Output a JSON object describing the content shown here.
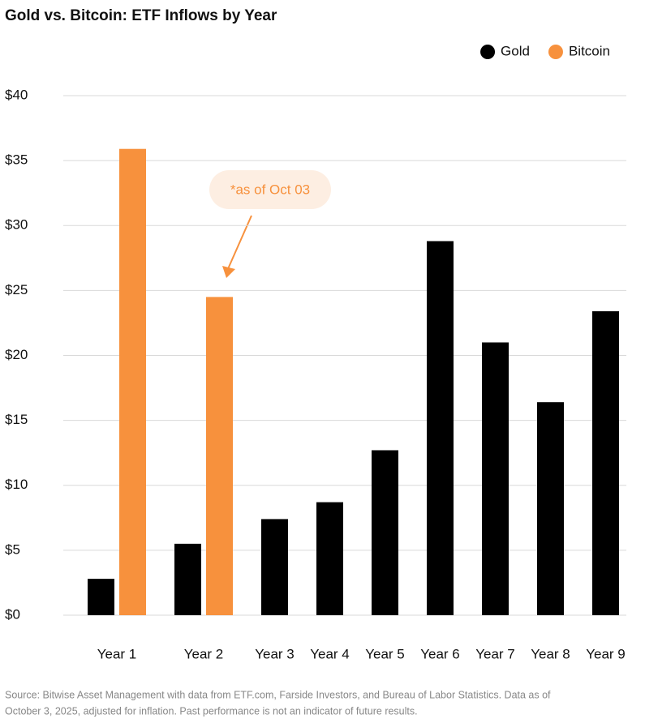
{
  "chart_data": {
    "type": "bar",
    "title": "Gold vs. Bitcoin: ETF Inflows by Year",
    "categories": [
      "Year 1",
      "Year 2",
      "Year 3",
      "Year 4",
      "Year 5",
      "Year 6",
      "Year 7",
      "Year 8",
      "Year 9"
    ],
    "series": [
      {
        "name": "Gold",
        "color": "#000000",
        "values": [
          2.8,
          5.5,
          7.4,
          8.7,
          12.7,
          28.8,
          21.0,
          16.4,
          23.4
        ]
      },
      {
        "name": "Bitcoin",
        "color": "#f7913d",
        "values": [
          35.9,
          24.5,
          null,
          null,
          null,
          null,
          null,
          null,
          null
        ]
      }
    ],
    "ylim": [
      0,
      40
    ],
    "yticks": [
      {
        "value": 0,
        "label": "$0"
      },
      {
        "value": 5,
        "label": "$5"
      },
      {
        "value": 10,
        "label": "$10"
      },
      {
        "value": 15,
        "label": "$15"
      },
      {
        "value": 20,
        "label": "$20"
      },
      {
        "value": 25,
        "label": "$25"
      },
      {
        "value": 30,
        "label": "$30"
      },
      {
        "value": 35,
        "label": "$35"
      },
      {
        "value": 40,
        "label": "$40"
      }
    ],
    "grid": true,
    "legend": "top-right",
    "annotation": "*as of Oct 03",
    "source": [
      "Source: Bitwise Asset Management with data from ETF.com, Farside Investors, and Bureau of Labor Statistics. Data as of",
      "October 3, 2025, adjusted for inflation. Past performance is not an indicator of future results."
    ]
  }
}
